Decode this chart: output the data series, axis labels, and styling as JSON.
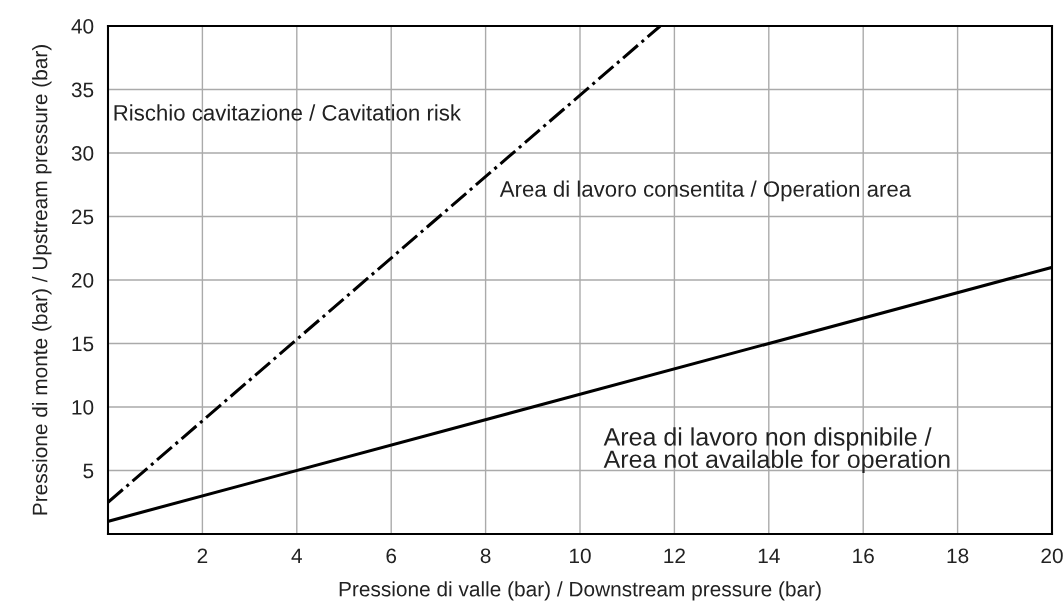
{
  "chart_data": {
    "type": "line",
    "xlabel": "Pressione di valle (bar) / Downstream pressure (bar)",
    "ylabel": "Pressione di monte (bar) / Upstream pressure (bar)",
    "series": [
      {
        "color": "#000000",
        "line_style": "dashdot",
        "x": [
          0,
          11.7
        ],
        "values": [
          2.5,
          40
        ]
      },
      {
        "color": "#000000",
        "line_style": "solid",
        "x": [
          0,
          20
        ],
        "values": [
          1,
          21
        ]
      }
    ],
    "annotations": [
      "Rischio cavitazione / Cavitation risk",
      "Area di lavoro consentita / Operation area",
      "Area di lavoro non dispnibile /\nArea not available for operation"
    ],
    "xlim": [
      0,
      20
    ],
    "xticks": [
      2,
      4,
      6,
      8,
      10,
      12,
      14,
      16,
      18,
      20
    ],
    "ylim": [
      0,
      40
    ],
    "yticks": [
      5,
      10,
      15,
      20,
      25,
      30,
      35,
      40
    ],
    "grid": true,
    "legend": false
  }
}
